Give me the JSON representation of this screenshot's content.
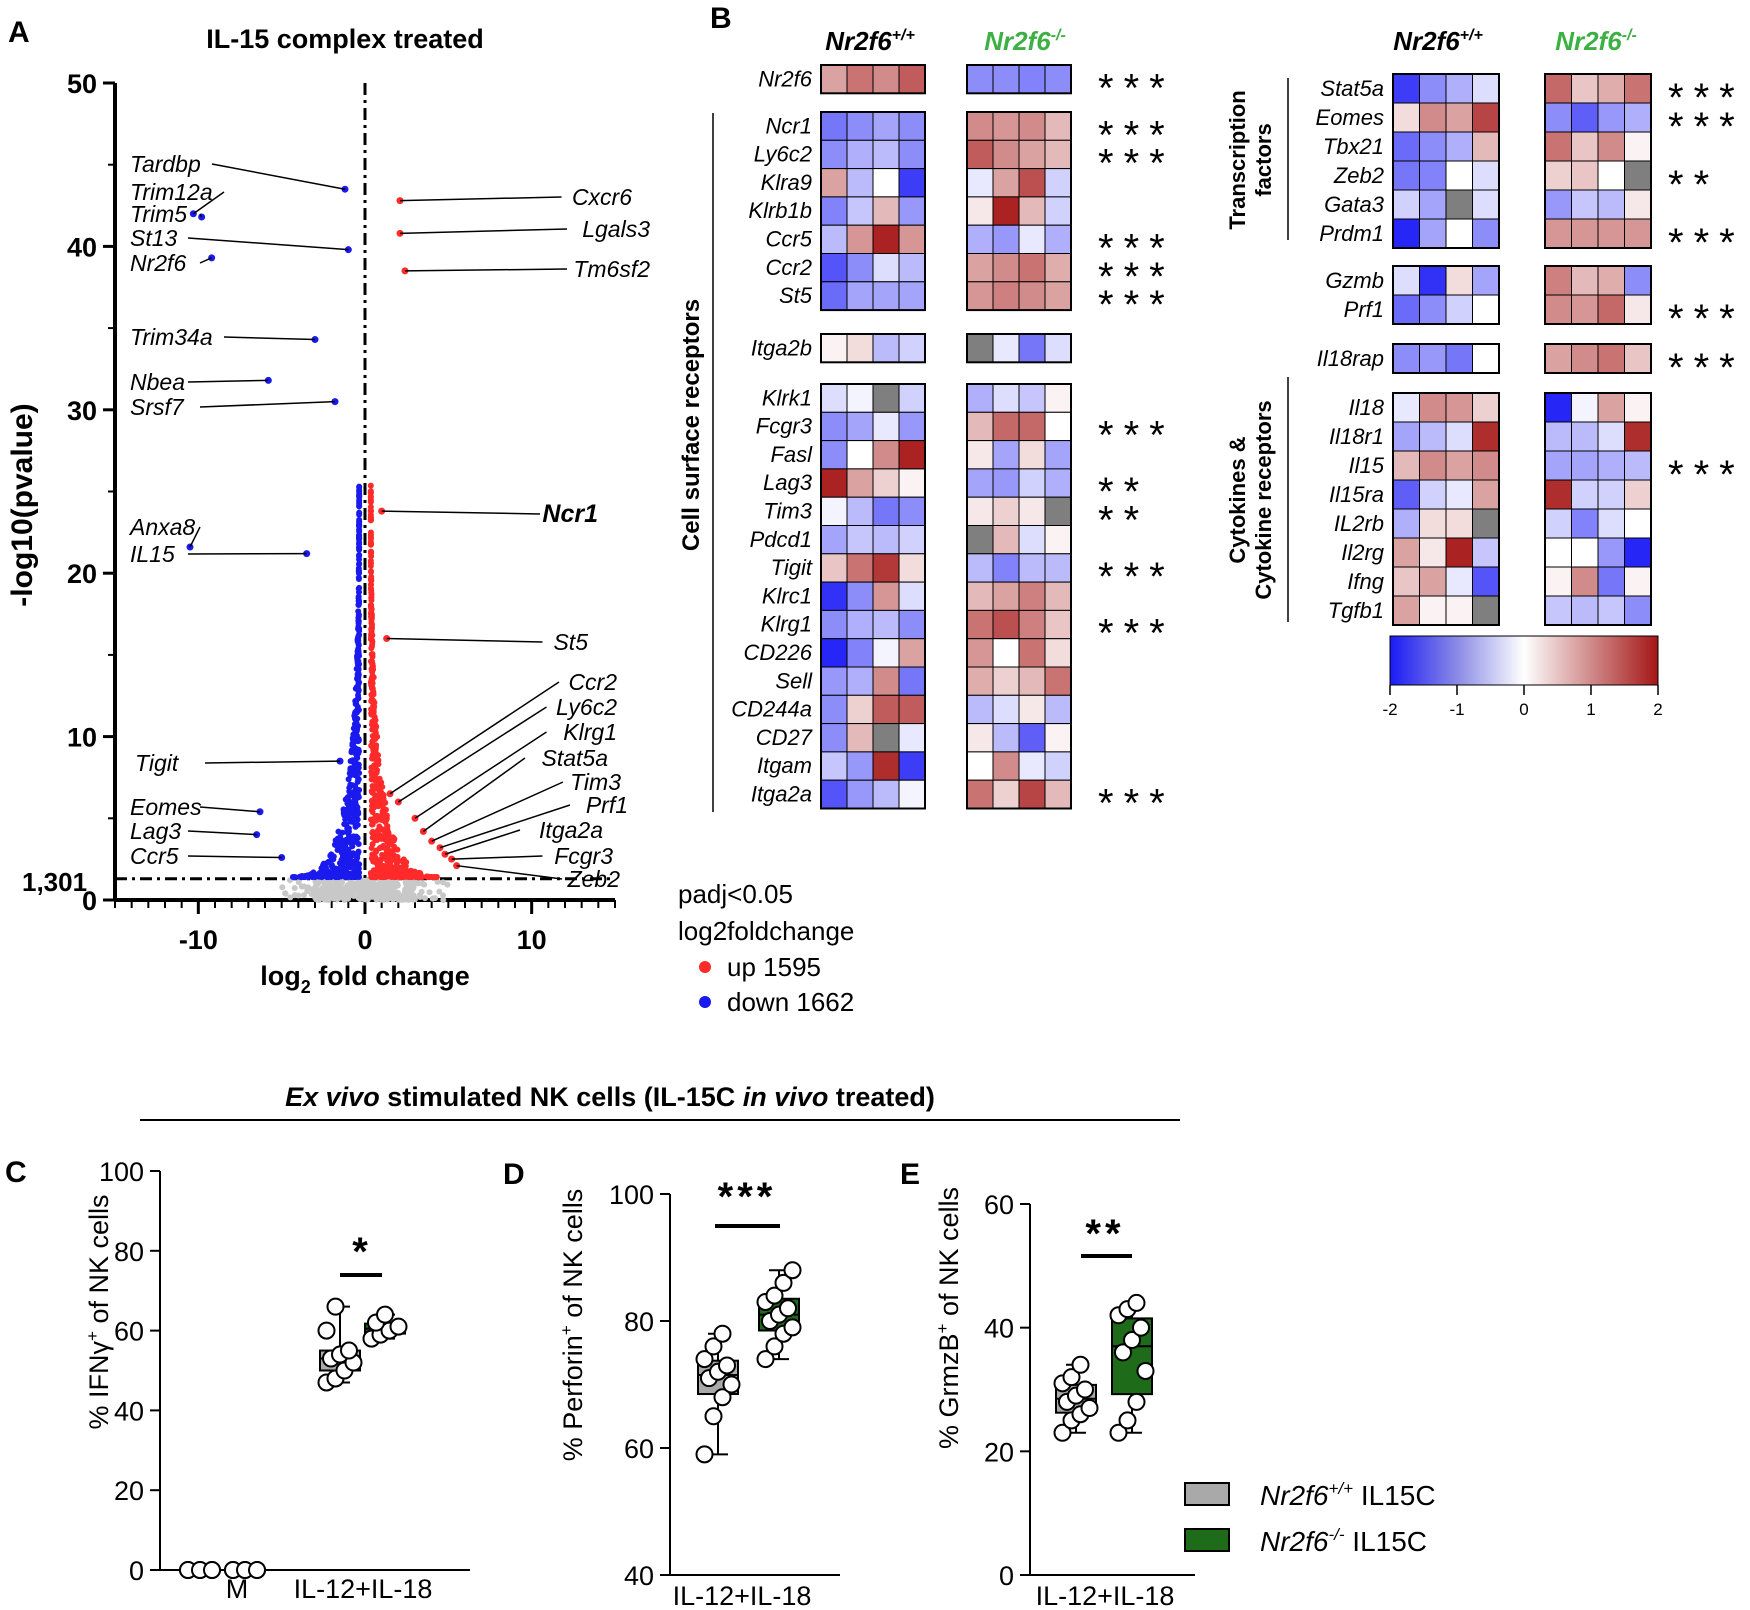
{
  "panels": {
    "A": "A",
    "B": "B",
    "C": "C",
    "D": "D",
    "E": "E"
  },
  "volcano": {
    "title": "IL-15 complex treated",
    "ylabel": "-log10(pvalue)",
    "xlabel_main": "log",
    "xlabel_sub": "2",
    "xlabel_rest": " fold change",
    "threshold_label": "1,301",
    "yticks": [
      "0",
      "10",
      "20",
      "30",
      "40",
      "50"
    ],
    "xticks": [
      "-10",
      "0",
      "10"
    ]
  },
  "legend_volcano": {
    "line1": "padj<0.05",
    "line2": "log2foldchange",
    "up": "up 1595",
    "down": "down 1662",
    "up_color": "#ff2a2a",
    "down_color": "#1a1aee"
  },
  "heatmap": {
    "wt_label": "Nr2f6",
    "wt_sup": "+/+",
    "ko_label": "Nr2f6",
    "ko_sup": "-/-",
    "ko_color": "#3cb043",
    "group_surface": "Cell surface receptors",
    "group_tf_1": "Transcription",
    "group_tf_2": "factors",
    "group_cyt_1": "Cytokines &",
    "group_cyt_2": "Cytokine receptors",
    "scale_ticks": [
      "-2",
      "-1",
      "0",
      "1",
      "2"
    ]
  },
  "section_title": {
    "a": "Ex vivo",
    "b": " stimulated NK cells (IL-15C ",
    "c": "in vivo",
    "d": " treated)"
  },
  "panel_C": {
    "ylabel": "% IFNγ",
    "ylabel_sup": "+",
    "ylabel_rest": " of NK cells",
    "yticks": [
      "0",
      "20",
      "40",
      "60",
      "80",
      "100"
    ],
    "xcat1": "M",
    "xcat2": "IL-12+IL-18",
    "sig": "*"
  },
  "panel_D": {
    "ylabel": "% Perforin",
    "ylabel_sup": "+",
    "ylabel_rest": " of NK cells",
    "yticks": [
      "40",
      "60",
      "80",
      "100"
    ],
    "xcat": "IL-12+IL-18",
    "sig": "***"
  },
  "panel_E": {
    "ylabel": "% GrmzB",
    "ylabel_sup": "+",
    "ylabel_rest": " of NK cells",
    "yticks": [
      "0",
      "20",
      "40",
      "60"
    ],
    "xcat": "IL-12+IL-18",
    "sig": "**"
  },
  "legend_box": {
    "wt": "Nr2f6",
    "wt_sup": "+/+",
    "wt_rest": " IL15C",
    "ko": "Nr2f6",
    "ko_sup": "-/-",
    "ko_rest": " IL15C",
    "wt_color": "#a9a9a9",
    "ko_color": "#1e6b1a"
  },
  "chart_data": [
    {
      "type": "scatter",
      "title": "IL-15 complex treated",
      "xlabel": "log2 fold change",
      "ylabel": "-log10(pvalue)",
      "xlim": [
        -15,
        15
      ],
      "ylim": [
        0,
        50
      ],
      "threshold_y": 1.301,
      "labeled_points": [
        {
          "gene": "Tardbp",
          "x": -1.2,
          "y": 43.5,
          "dir": "down"
        },
        {
          "gene": "Trim12a",
          "x": -10.3,
          "y": 42.0,
          "dir": "down"
        },
        {
          "gene": "Trim5",
          "x": -9.8,
          "y": 41.8,
          "dir": "down"
        },
        {
          "gene": "St13",
          "x": -1.0,
          "y": 39.8,
          "dir": "down"
        },
        {
          "gene": "Nr2f6",
          "x": -9.2,
          "y": 39.3,
          "dir": "down"
        },
        {
          "gene": "Trim34a",
          "x": -3.0,
          "y": 34.3,
          "dir": "down"
        },
        {
          "gene": "Nbea",
          "x": -5.8,
          "y": 31.8,
          "dir": "down"
        },
        {
          "gene": "Srsf7",
          "x": -1.8,
          "y": 30.5,
          "dir": "down"
        },
        {
          "gene": "Anxa8",
          "x": -10.5,
          "y": 21.6,
          "dir": "down"
        },
        {
          "gene": "IL15",
          "x": -3.5,
          "y": 21.2,
          "dir": "down"
        },
        {
          "gene": "Tigit",
          "x": -1.5,
          "y": 8.5,
          "dir": "down"
        },
        {
          "gene": "Eomes",
          "x": -6.3,
          "y": 5.4,
          "dir": "down"
        },
        {
          "gene": "Lag3",
          "x": -6.5,
          "y": 4.0,
          "dir": "down"
        },
        {
          "gene": "Ccr5",
          "x": -5.0,
          "y": 2.6,
          "dir": "down"
        },
        {
          "gene": "Cxcr6",
          "x": 2.1,
          "y": 42.8,
          "dir": "up"
        },
        {
          "gene": "Lgals3",
          "x": 2.1,
          "y": 40.8,
          "dir": "up"
        },
        {
          "gene": "Tm6sf2",
          "x": 2.4,
          "y": 38.5,
          "dir": "up"
        },
        {
          "gene": "Ncr1",
          "x": 1.0,
          "y": 23.8,
          "dir": "up"
        },
        {
          "gene": "St5",
          "x": 1.3,
          "y": 16.0,
          "dir": "up"
        },
        {
          "gene": "Ccr2",
          "x": 1.5,
          "y": 6.5,
          "dir": "up"
        },
        {
          "gene": "Ly6c2",
          "x": 2.0,
          "y": 6.0,
          "dir": "up"
        },
        {
          "gene": "Klrg1",
          "x": 3.0,
          "y": 5.0,
          "dir": "up"
        },
        {
          "gene": "Stat5a",
          "x": 3.5,
          "y": 4.2,
          "dir": "up"
        },
        {
          "gene": "Tim3",
          "x": 4.0,
          "y": 3.6,
          "dir": "up"
        },
        {
          "gene": "Prf1",
          "x": 4.5,
          "y": 3.2,
          "dir": "up"
        },
        {
          "gene": "Itga2a",
          "x": 4.8,
          "y": 2.8,
          "dir": "up"
        },
        {
          "gene": "Fcgr3",
          "x": 5.2,
          "y": 2.5,
          "dir": "up"
        },
        {
          "gene": "Zeb2",
          "x": 5.5,
          "y": 2.1,
          "dir": "up"
        }
      ],
      "legend": [
        "up 1595",
        "down 1662"
      ]
    },
    {
      "type": "heatmap",
      "scale": [
        -2,
        2
      ],
      "columns": [
        "Nr2f6+/+ 1",
        "Nr2f6+/+ 2",
        "Nr2f6+/+ 3",
        "Nr2f6+/+ 4",
        "Nr2f6-/- 1",
        "Nr2f6-/- 2",
        "Nr2f6-/- 3",
        "Nr2f6-/- 4"
      ],
      "left_blocks": [
        {
          "genes": [
            "Nr2f6"
          ],
          "values": [
            [
              0.8,
              1.2,
              1.0,
              1.4,
              -1.0,
              -1.0,
              -1.1,
              -1.0
            ]
          ],
          "sig": [
            "***"
          ]
        },
        {
          "genes": [
            "Ncr1",
            "Ly6c2",
            "Klra9",
            "Klrb1b",
            "Ccr5",
            "Ccr2",
            "St5"
          ],
          "values": [
            [
              -1.2,
              -1.0,
              -0.8,
              -1.0,
              1.0,
              0.9,
              1.0,
              0.6
            ],
            [
              -1.0,
              -0.7,
              -0.6,
              -1.0,
              1.4,
              1.0,
              0.8,
              0.6
            ],
            [
              0.8,
              -0.6,
              0.0,
              -1.7,
              -0.2,
              0.8,
              1.5,
              -0.4
            ],
            [
              -1.1,
              -0.5,
              0.6,
              -0.9,
              0.2,
              1.9,
              0.6,
              -0.4
            ],
            [
              -0.6,
              0.9,
              1.9,
              0.9,
              -0.7,
              -0.9,
              -0.2,
              -0.7
            ],
            [
              -1.5,
              -1.0,
              -0.3,
              -0.6,
              0.8,
              1.0,
              1.2,
              0.7
            ],
            [
              -1.3,
              -0.8,
              -0.8,
              -0.8,
              0.9,
              1.1,
              1.0,
              0.8
            ]
          ],
          "sig": [
            "***",
            "***",
            "",
            "",
            "***",
            "***",
            "***"
          ]
        },
        {
          "genes": [
            "Itga2b"
          ],
          "values": [
            [
              0.1,
              0.3,
              -0.6,
              -0.4,
              null,
              -0.2,
              -1.2,
              -0.3
            ]
          ],
          "sig": [
            ""
          ]
        },
        {
          "genes": [
            "Klrk1",
            "Fcgr3",
            "Fasl",
            "Lag3",
            "Tim3",
            "Pdcd1",
            "Tigit",
            "Klrc1",
            "Klrg1",
            "CD226",
            "Sell",
            "CD244a",
            "CD27",
            "Itgam",
            "Itga2a"
          ],
          "values": [
            [
              -0.3,
              -0.1,
              null,
              -0.4,
              -0.7,
              -0.3,
              -0.5,
              0.1
            ],
            [
              -1.0,
              -0.8,
              -0.2,
              -0.9,
              0.6,
              1.3,
              1.3,
              0.0
            ],
            [
              -1.0,
              0.0,
              1.0,
              1.9,
              0.2,
              -0.8,
              0.3,
              -0.8
            ],
            [
              1.9,
              0.8,
              0.4,
              0.1,
              -0.8,
              -0.9,
              -0.4,
              -0.7
            ],
            [
              -0.1,
              -0.6,
              -1.2,
              -1.0,
              0.2,
              0.4,
              0.2,
              null
            ],
            [
              -0.8,
              -0.5,
              -0.6,
              -0.4,
              null,
              0.6,
              -0.3,
              0.1
            ],
            [
              0.5,
              1.2,
              1.7,
              0.3,
              -0.6,
              -1.1,
              -0.6,
              -0.6
            ],
            [
              -1.8,
              -1.0,
              0.9,
              -0.3,
              0.6,
              0.8,
              1.1,
              0.6
            ],
            [
              -1.0,
              -0.7,
              -0.6,
              -1.0,
              1.2,
              1.5,
              1.1,
              0.5
            ],
            [
              -1.9,
              -1.1,
              -0.1,
              0.8,
              0.9,
              0.0,
              1.2,
              0.3
            ],
            [
              -0.9,
              -0.7,
              1.0,
              -1.2,
              0.7,
              0.4,
              0.6,
              1.2
            ],
            [
              -1.0,
              0.4,
              1.4,
              1.4,
              -0.6,
              -0.3,
              0.2,
              -0.6
            ],
            [
              -1.0,
              0.6,
              null,
              -0.2,
              0.2,
              -0.6,
              -1.4,
              0.1
            ],
            [
              -0.5,
              -0.9,
              1.8,
              -1.7,
              0.0,
              1.0,
              -0.2,
              -0.4
            ],
            [
              -1.5,
              -0.9,
              -0.6,
              -0.1,
              1.2,
              0.4,
              1.6,
              0.6
            ]
          ],
          "sig": [
            "",
            "***",
            "",
            "**",
            "**",
            "",
            "***",
            "",
            "***",
            "",
            "",
            "",
            "",
            "",
            "***"
          ]
        }
      ],
      "right_blocks": [
        {
          "group": "Transcription factors",
          "genes": [
            "Stat5a",
            "Eomes",
            "Tbx21",
            "Zeb2",
            "Gata3",
            "Prdm1"
          ],
          "values": [
            [
              -1.7,
              -1.0,
              -0.7,
              -0.3,
              1.3,
              0.5,
              0.7,
              1.2
            ],
            [
              0.3,
              1.0,
              0.8,
              1.6,
              -1.0,
              -1.4,
              -0.9,
              -0.7
            ],
            [
              -1.3,
              -1.0,
              -0.7,
              0.6,
              1.2,
              0.5,
              1.0,
              0.1
            ],
            [
              -1.2,
              -1.1,
              0.0,
              -0.3,
              0.4,
              0.5,
              0.0,
              null
            ],
            [
              -0.4,
              -0.8,
              null,
              -0.3,
              -0.9,
              -0.5,
              -0.6,
              0.2
            ],
            [
              -1.9,
              -0.8,
              0.0,
              -1.0,
              0.9,
              0.9,
              0.9,
              0.9
            ]
          ],
          "sig": [
            "***",
            "***",
            "",
            "**",
            "",
            "***"
          ]
        },
        {
          "genes": [
            "Gzmb",
            "Prf1"
          ],
          "values": [
            [
              -0.3,
              -1.8,
              0.3,
              -0.8,
              1.1,
              0.6,
              0.7,
              -1.0
            ],
            [
              -1.3,
              -1.0,
              -0.4,
              0.0,
              1.0,
              0.9,
              1.3,
              0.2
            ]
          ],
          "sig": [
            "",
            "***"
          ]
        },
        {
          "genes": [
            "Il18rap"
          ],
          "values": [
            [
              -1.0,
              -0.9,
              -1.2,
              0.0,
              0.8,
              1.0,
              1.2,
              0.5
            ]
          ],
          "sig": [
            "***"
          ]
        },
        {
          "group": "Cytokines & Cytokine receptors",
          "genes": [
            "Il18",
            "Il18r1",
            "Il15",
            "Il15ra",
            "IL2rb",
            "Il2rg",
            "Ifng",
            "Tgfb1"
          ],
          "values": [
            [
              -0.2,
              1.0,
              0.9,
              0.4,
              -1.9,
              -0.1,
              0.8,
              0.1
            ],
            [
              -0.8,
              -0.6,
              -0.3,
              1.8,
              -0.6,
              -0.6,
              -0.3,
              1.8
            ],
            [
              0.6,
              1.0,
              0.8,
              1.0,
              -0.8,
              -0.8,
              -0.7,
              -0.6
            ],
            [
              -1.4,
              -0.4,
              -0.2,
              0.8,
              1.8,
              -0.4,
              -0.4,
              0.4
            ],
            [
              -0.7,
              0.3,
              0.3,
              null,
              -0.4,
              -1.1,
              -0.3,
              0.0
            ],
            [
              0.8,
              0.2,
              1.9,
              -0.5,
              0.0,
              0.0,
              -0.9,
              -1.9
            ],
            [
              0.5,
              0.8,
              -0.2,
              -1.5,
              0.1,
              1.0,
              -1.2,
              0.1
            ],
            [
              0.8,
              0.1,
              0.1,
              null,
              -0.5,
              -0.6,
              -0.5,
              -1.0
            ]
          ],
          "sig": [
            "",
            "",
            "***",
            "",
            "",
            "",
            "",
            ""
          ]
        }
      ]
    },
    {
      "type": "scatter",
      "panel": "C",
      "ylabel": "% IFNγ+ of NK cells",
      "ylim": [
        0,
        100
      ],
      "categories": [
        "M",
        "IL-12+IL-18"
      ],
      "series": [
        {
          "name": "Nr2f6+/+ IL15C",
          "M": [
            0,
            0,
            0,
            0,
            0,
            0
          ],
          "IL-12+IL-18": [
            48,
            47,
            50,
            52,
            53,
            54,
            55,
            60,
            66
          ]
        },
        {
          "name": "Nr2f6-/- IL15C",
          "M": [
            0,
            0,
            0,
            0,
            0,
            0
          ],
          "IL-12+IL-18": [
            58,
            59,
            60,
            61,
            62,
            64
          ]
        }
      ],
      "significance": "*"
    },
    {
      "type": "box",
      "panel": "D",
      "ylabel": "% Perforin+ of NK cells",
      "ylim": [
        40,
        100
      ],
      "categories": [
        "IL-12+IL-18"
      ],
      "series": [
        {
          "name": "Nr2f6+/+ IL15C",
          "values": [
            59,
            65,
            68,
            70,
            71,
            72,
            73,
            74,
            76,
            78
          ]
        },
        {
          "name": "Nr2f6-/- IL15C",
          "values": [
            74,
            76,
            78,
            79,
            80,
            81,
            82,
            83,
            84,
            86,
            88
          ]
        }
      ],
      "significance": "***"
    },
    {
      "type": "box",
      "panel": "E",
      "ylabel": "% GrmzB+ of NK cells",
      "ylim": [
        0,
        60
      ],
      "categories": [
        "IL-12+IL-18"
      ],
      "series": [
        {
          "name": "Nr2f6+/+ IL15C",
          "values": [
            23,
            25,
            26,
            27,
            28,
            29,
            30,
            31,
            32,
            34
          ]
        },
        {
          "name": "Nr2f6-/- IL15C",
          "values": [
            23,
            25,
            28,
            33,
            36,
            38,
            40,
            42,
            43,
            44
          ]
        }
      ],
      "significance": "**"
    }
  ]
}
